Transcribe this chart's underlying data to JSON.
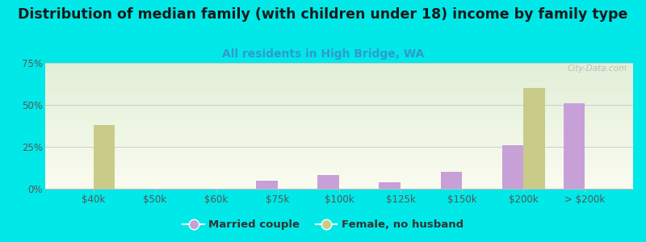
{
  "title": "Distribution of median family (with children under 18) income by family type",
  "subtitle": "All residents in High Bridge, WA",
  "categories": [
    "$40k",
    "$50k",
    "$60k",
    "$75k",
    "$100k",
    "$125k",
    "$150k",
    "$200k",
    "> $200k"
  ],
  "married_values": [
    0,
    0,
    0,
    5,
    8,
    4,
    10,
    26,
    51
  ],
  "female_values": [
    38,
    0,
    0,
    0,
    0,
    0,
    0,
    60,
    0
  ],
  "married_color": "#c8a0d8",
  "female_color": "#c8cc88",
  "bg_color": "#00e8e8",
  "ylim": [
    0,
    75
  ],
  "yticks": [
    0,
    25,
    50,
    75
  ],
  "ytick_labels": [
    "0%",
    "25%",
    "50%",
    "75%"
  ],
  "title_fontsize": 12.5,
  "subtitle_fontsize": 10,
  "legend_label_married": "Married couple",
  "legend_label_female": "Female, no husband",
  "bar_width": 0.35,
  "watermark": "City-Data.com"
}
